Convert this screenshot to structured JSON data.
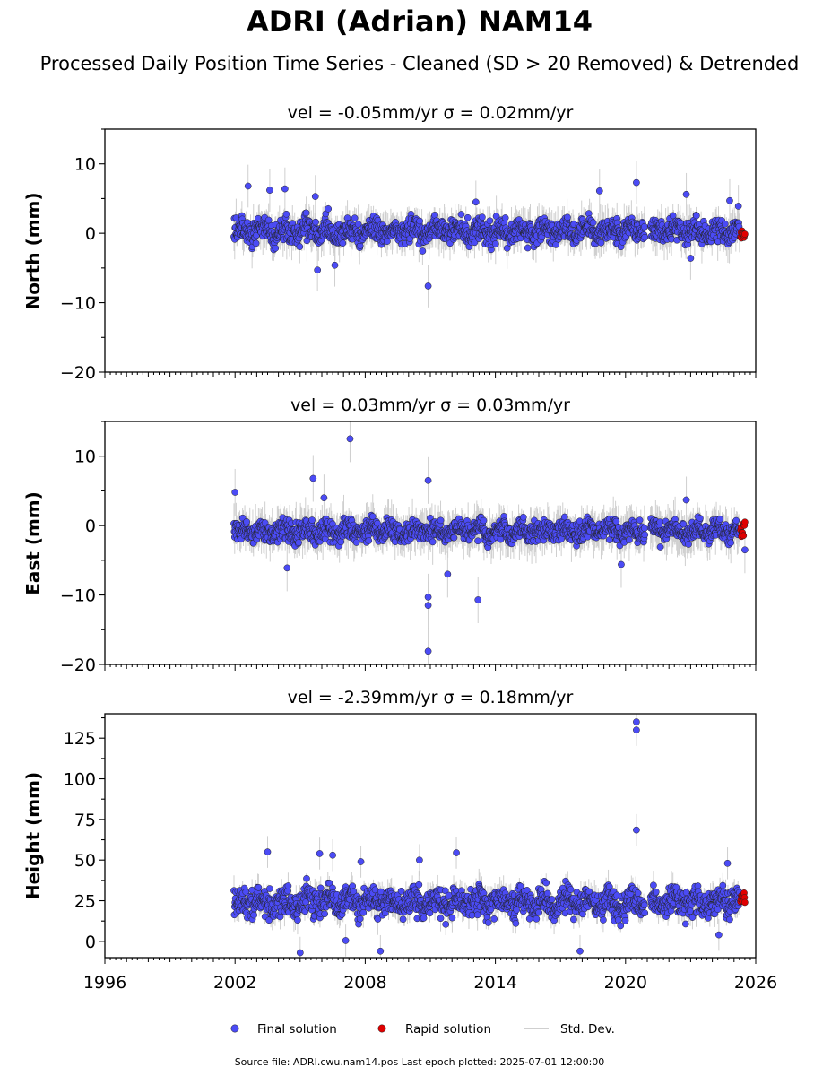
{
  "title": "ADRI (Adrian) NAM14",
  "subtitle": "Processed Daily Position Time Series - Cleaned (SD > 20 Removed) & Detrended",
  "legend": {
    "final": "Final solution",
    "rapid": "Rapid solution",
    "std": "Std. Dev."
  },
  "footer": "Source file: ADRI.cwu.nam14.pos  Last epoch plotted: 2025-07-01 12:00:00",
  "colors": {
    "final": "#4b4bf5",
    "rapid": "#e00000",
    "std": "#bfbfbf",
    "edge": "#222222"
  },
  "chart_data": [
    {
      "type": "scatter",
      "panel_title": "vel = -0.05mm/yr   σ = 0.02mm/yr",
      "ylabel": "North (mm)",
      "xlim": [
        1996,
        2026
      ],
      "ylim": [
        -20,
        15
      ],
      "yticks": [
        10,
        0,
        -10,
        -20
      ],
      "xticks": [],
      "xtick_labels": [],
      "data_span": [
        2001.95,
        2025.25
      ],
      "rapid_span": [
        2025.3,
        2025.5
      ],
      "series": [
        {
          "name": "Final solution",
          "mean": 0.3,
          "spread": 1.6,
          "sd_mean": 2.2,
          "outliers": [
            {
              "x": 2002.6,
              "y": 6.8
            },
            {
              "x": 2003.6,
              "y": 6.2
            },
            {
              "x": 2004.3,
              "y": 6.4
            },
            {
              "x": 2005.7,
              "y": 5.3
            },
            {
              "x": 2005.8,
              "y": -5.3
            },
            {
              "x": 2006.6,
              "y": -4.6
            },
            {
              "x": 2010.9,
              "y": -7.6
            },
            {
              "x": 2013.1,
              "y": 4.5
            },
            {
              "x": 2018.8,
              "y": 6.1
            },
            {
              "x": 2020.5,
              "y": 7.3
            },
            {
              "x": 2022.8,
              "y": 5.6
            },
            {
              "x": 2023.0,
              "y": -3.6
            },
            {
              "x": 2024.8,
              "y": 4.7
            },
            {
              "x": 2025.2,
              "y": 3.9
            }
          ]
        },
        {
          "name": "Rapid solution",
          "mean": 0.0,
          "spread": 0.7,
          "count": 10
        }
      ]
    },
    {
      "type": "scatter",
      "panel_title": "vel = 0.03mm/yr   σ = 0.03mm/yr",
      "ylabel": "East (mm)",
      "xlim": [
        1996,
        2026
      ],
      "ylim": [
        -20,
        15
      ],
      "yticks": [
        10,
        0,
        -10,
        -20
      ],
      "xticks": [],
      "xtick_labels": [],
      "data_span": [
        2001.95,
        2025.25
      ],
      "rapid_span": [
        2025.3,
        2025.5
      ],
      "series": [
        {
          "name": "Final solution",
          "mean": -0.8,
          "spread": 1.4,
          "sd_mean": 2.4,
          "outliers": [
            {
              "x": 2002.0,
              "y": 4.8
            },
            {
              "x": 2005.6,
              "y": 6.8
            },
            {
              "x": 2006.1,
              "y": 4.0
            },
            {
              "x": 2007.3,
              "y": 12.5
            },
            {
              "x": 2004.4,
              "y": -6.1
            },
            {
              "x": 2010.9,
              "y": 6.5
            },
            {
              "x": 2010.9,
              "y": -10.3
            },
            {
              "x": 2010.9,
              "y": -11.5
            },
            {
              "x": 2010.9,
              "y": -18.1
            },
            {
              "x": 2011.8,
              "y": -7.0
            },
            {
              "x": 2013.2,
              "y": -10.7
            },
            {
              "x": 2022.8,
              "y": 3.7
            },
            {
              "x": 2019.8,
              "y": -5.6
            },
            {
              "x": 2025.5,
              "y": -3.5
            }
          ]
        },
        {
          "name": "Rapid solution",
          "mean": -0.5,
          "spread": 1.1,
          "count": 10
        }
      ]
    },
    {
      "type": "scatter",
      "panel_title": "vel = -2.39mm/yr   σ = 0.18mm/yr",
      "ylabel": "Height (mm)",
      "xlim": [
        1996,
        2026
      ],
      "ylim": [
        -10,
        140
      ],
      "yticks": [
        125,
        100,
        75,
        50,
        25,
        0
      ],
      "xticks": [
        1996,
        2002,
        2008,
        2014,
        2020,
        2026
      ],
      "xtick_labels": [
        "1996",
        "2002",
        "2008",
        "2014",
        "2020",
        "2026"
      ],
      "data_span": [
        2001.95,
        2025.25
      ],
      "rapid_span": [
        2025.3,
        2025.5
      ],
      "series": [
        {
          "name": "Final solution",
          "mean": 24,
          "spread": 8,
          "sd_mean": 7,
          "outliers": [
            {
              "x": 2020.5,
              "y": 135.0
            },
            {
              "x": 2020.5,
              "y": 130.0
            },
            {
              "x": 2020.5,
              "y": 68.5
            },
            {
              "x": 2003.5,
              "y": 55.0
            },
            {
              "x": 2005.9,
              "y": 54.0
            },
            {
              "x": 2012.2,
              "y": 54.5
            },
            {
              "x": 2006.5,
              "y": 53.0
            },
            {
              "x": 2010.5,
              "y": 50.0
            },
            {
              "x": 2007.8,
              "y": 49.0
            },
            {
              "x": 2024.7,
              "y": 48.0
            },
            {
              "x": 2005.0,
              "y": -7.0
            },
            {
              "x": 2008.7,
              "y": -6.0
            },
            {
              "x": 2017.9,
              "y": -6.0
            },
            {
              "x": 2007.1,
              "y": 0.5
            },
            {
              "x": 2024.3,
              "y": 4.0
            }
          ]
        },
        {
          "name": "Rapid solution",
          "mean": 27,
          "spread": 4,
          "count": 12
        }
      ]
    }
  ]
}
